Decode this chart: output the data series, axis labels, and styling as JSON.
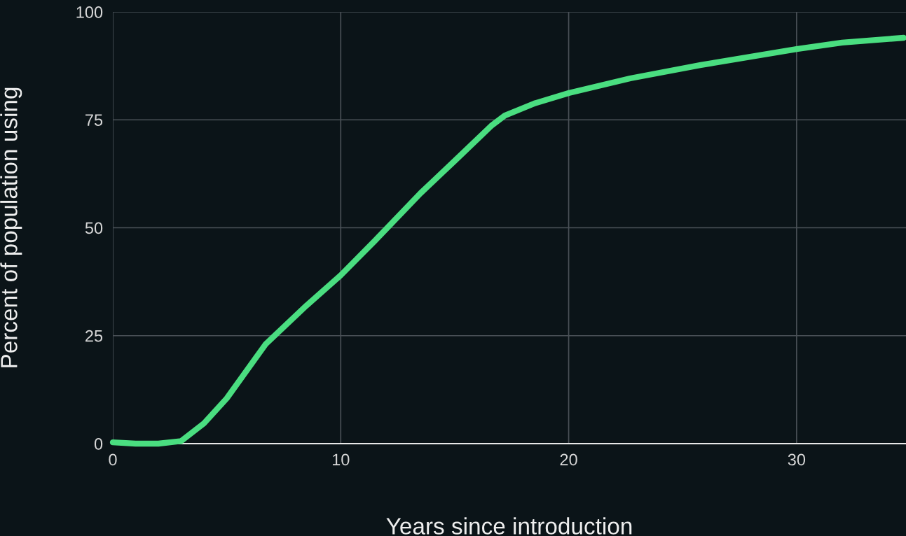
{
  "chart_data": {
    "type": "line",
    "xlabel": "Years since introduction",
    "ylabel": "Percent of population using",
    "x": [
      0,
      1,
      2,
      3,
      4,
      5,
      6.7,
      8.5,
      10,
      11.5,
      13.5,
      15,
      16.6,
      17.2,
      18.5,
      20,
      22.7,
      25.8,
      30,
      32,
      34.7
    ],
    "series": [
      {
        "color": "#4ade80",
        "values": [
          0.3,
          0,
          0,
          0.6,
          4.7,
          10.5,
          23,
          32,
          39,
          47,
          58,
          65.5,
          73.6,
          76,
          78.8,
          81.2,
          84.6,
          87.7,
          91.4,
          92.9,
          94
        ]
      }
    ],
    "xlim": [
      0,
      34.8
    ],
    "ylim": [
      0,
      100
    ],
    "xticks": [
      0,
      10,
      20,
      30
    ],
    "yticks": [
      0,
      25,
      50,
      75,
      100
    ],
    "grid": true,
    "marker": "none",
    "line_style": "solid"
  }
}
